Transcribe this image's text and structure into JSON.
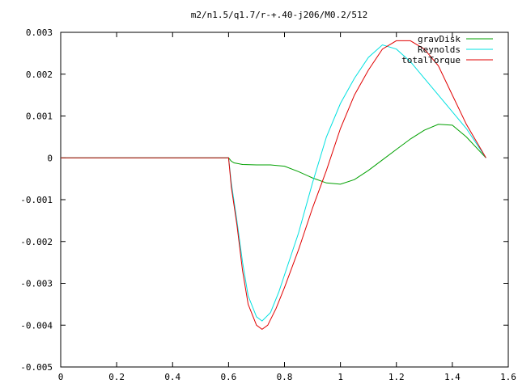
{
  "chart_data": {
    "type": "line",
    "title": "m2/n1.5/q1.7/r-+.40-j206/M0.2/512",
    "xlabel": "",
    "ylabel": "",
    "xlim": [
      0,
      1.6
    ],
    "ylim": [
      -0.005,
      0.003
    ],
    "grid": false,
    "legend_position": "top-right",
    "x_ticks": [
      "0",
      "0.2",
      "0.4",
      "0.6",
      "0.8",
      "1",
      "1.2",
      "1.4",
      "1.6"
    ],
    "y_ticks": [
      "0.003",
      "0.002",
      "0.001",
      "0",
      "-0.001",
      "-0.002",
      "-0.003",
      "-0.004",
      "-0.005"
    ],
    "series": [
      {
        "name": "gravDisk",
        "color": "#00a000",
        "x": [
          0,
          0.6,
          0.61,
          0.62,
          0.65,
          0.7,
          0.75,
          0.8,
          0.85,
          0.9,
          0.95,
          1.0,
          1.05,
          1.1,
          1.15,
          1.2,
          1.25,
          1.3,
          1.35,
          1.4,
          1.45,
          1.52
        ],
        "y": [
          0,
          0,
          -8e-05,
          -0.00012,
          -0.00016,
          -0.00017,
          -0.00017,
          -0.0002,
          -0.00033,
          -0.00048,
          -0.0006,
          -0.00063,
          -0.00052,
          -0.0003,
          -5e-05,
          0.0002,
          0.00045,
          0.00066,
          0.0008,
          0.00078,
          0.0005,
          0
        ]
      },
      {
        "name": "Reynolds",
        "color": "#00e0e0",
        "x": [
          0,
          0.6,
          0.61,
          0.63,
          0.65,
          0.67,
          0.7,
          0.72,
          0.75,
          0.78,
          0.8,
          0.85,
          0.9,
          0.95,
          1.0,
          1.05,
          1.1,
          1.15,
          1.2,
          1.25,
          1.3,
          1.35,
          1.4,
          1.45,
          1.52
        ],
        "y": [
          0,
          0,
          -0.0006,
          -0.0015,
          -0.0025,
          -0.0033,
          -0.0038,
          -0.0039,
          -0.0037,
          -0.0032,
          -0.0028,
          -0.0018,
          -0.0006,
          0.0005,
          0.0013,
          0.0019,
          0.0024,
          0.0027,
          0.0026,
          0.0023,
          0.0019,
          0.0015,
          0.0011,
          0.0007,
          0
        ]
      },
      {
        "name": "totalTorque",
        "color": "#e00000",
        "x": [
          0,
          0.6,
          0.61,
          0.63,
          0.65,
          0.67,
          0.7,
          0.72,
          0.74,
          0.77,
          0.8,
          0.85,
          0.9,
          0.95,
          1.0,
          1.05,
          1.1,
          1.15,
          1.2,
          1.25,
          1.3,
          1.35,
          1.4,
          1.45,
          1.52
        ],
        "y": [
          0,
          0,
          -0.0007,
          -0.0016,
          -0.0027,
          -0.0035,
          -0.004,
          -0.0041,
          -0.004,
          -0.0036,
          -0.0031,
          -0.0022,
          -0.0012,
          -0.0003,
          0.0007,
          0.0015,
          0.0021,
          0.0026,
          0.0028,
          0.0028,
          0.0026,
          0.0022,
          0.0015,
          0.0008,
          0
        ]
      }
    ]
  }
}
